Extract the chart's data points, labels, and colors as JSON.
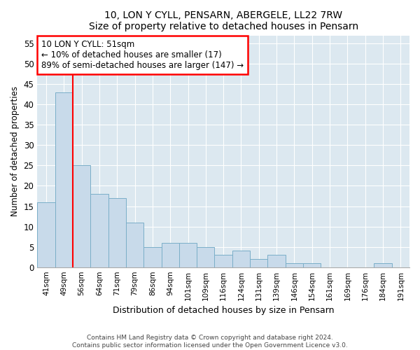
{
  "title1": "10, LON Y CYLL, PENSARN, ABERGELE, LL22 7RW",
  "title2": "Size of property relative to detached houses in Pensarn",
  "xlabel": "Distribution of detached houses by size in Pensarn",
  "ylabel": "Number of detached properties",
  "categories": [
    "41sqm",
    "49sqm",
    "56sqm",
    "64sqm",
    "71sqm",
    "79sqm",
    "86sqm",
    "94sqm",
    "101sqm",
    "109sqm",
    "116sqm",
    "124sqm",
    "131sqm",
    "139sqm",
    "146sqm",
    "154sqm",
    "161sqm",
    "169sqm",
    "176sqm",
    "184sqm",
    "191sqm"
  ],
  "values": [
    16,
    43,
    25,
    18,
    17,
    11,
    5,
    6,
    6,
    5,
    3,
    4,
    2,
    3,
    1,
    1,
    0,
    0,
    0,
    1,
    0
  ],
  "bar_color": "#c8daea",
  "bar_edgecolor": "#7aaec8",
  "redline_after_index": 1,
  "annotation_lines": [
    "10 LON Y CYLL: 51sqm",
    "← 10% of detached houses are smaller (17)",
    "89% of semi-detached houses are larger (147) →"
  ],
  "ylim": [
    0,
    57
  ],
  "yticks": [
    0,
    5,
    10,
    15,
    20,
    25,
    30,
    35,
    40,
    45,
    50,
    55
  ],
  "footer1": "Contains HM Land Registry data © Crown copyright and database right 2024.",
  "footer2": "Contains public sector information licensed under the Open Government Licence v3.0.",
  "background_color": "#dce8f0"
}
